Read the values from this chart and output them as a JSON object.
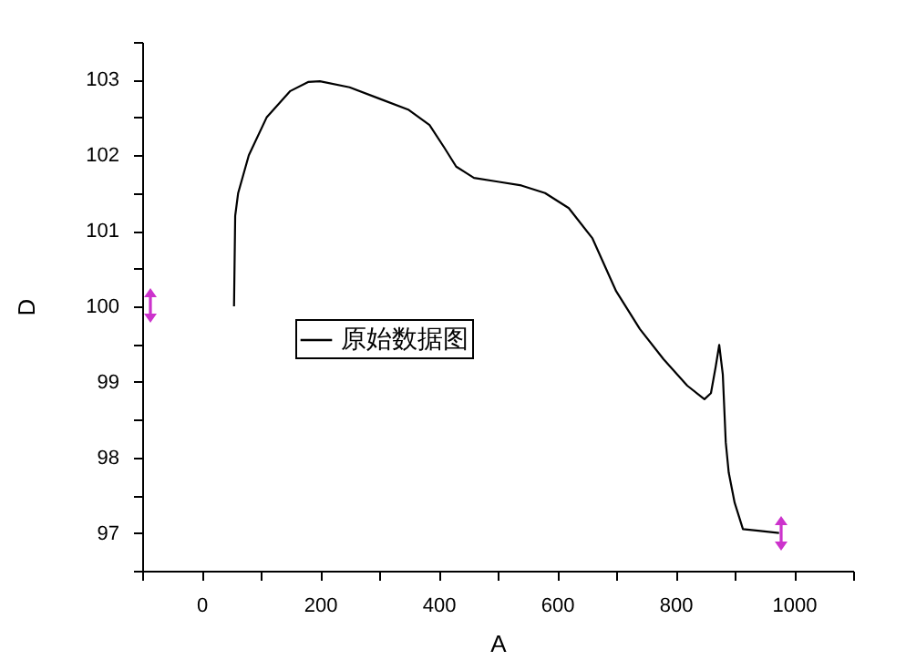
{
  "chart_data": {
    "type": "line",
    "xlabel": "A",
    "ylabel": "D",
    "x": [
      55,
      57,
      62,
      80,
      110,
      150,
      180,
      200,
      250,
      300,
      350,
      385,
      410,
      430,
      460,
      500,
      540,
      580,
      620,
      660,
      700,
      740,
      780,
      820,
      849,
      860,
      868,
      874,
      880,
      885,
      890,
      900,
      914,
      940,
      975
    ],
    "series": [
      {
        "name": "原始数据图",
        "color": "#000000",
        "values": [
          100,
          101.2,
          101.5,
          102.0,
          102.5,
          102.85,
          102.97,
          102.98,
          102.9,
          102.75,
          102.6,
          102.4,
          102.1,
          101.85,
          101.7,
          101.65,
          101.6,
          101.5,
          101.3,
          100.9,
          100.2,
          99.7,
          99.3,
          98.95,
          98.77,
          98.85,
          99.2,
          99.49,
          99.1,
          98.2,
          97.8,
          97.4,
          97.05,
          97.03,
          97.0
        ]
      }
    ],
    "xlim": [
      -100,
      1100
    ],
    "xticks": [
      {
        "value": -100,
        "label": null
      },
      0,
      {
        "value": 100,
        "label": null
      },
      200,
      {
        "value": 300,
        "label": null
      },
      400,
      {
        "value": 500,
        "label": null
      },
      600,
      {
        "value": 700,
        "label": null
      },
      800,
      {
        "value": 900,
        "label": null
      },
      1000,
      {
        "value": 1100,
        "label": null
      }
    ],
    "ylim": [
      96.5,
      103.5
    ],
    "yticks": [
      {
        "value": 96.5,
        "label": null
      },
      97,
      {
        "value": 97.5,
        "label": null
      },
      98,
      {
        "value": 98.5,
        "label": null
      },
      99,
      {
        "value": 99.5,
        "label": null
      },
      100,
      {
        "value": 100.5,
        "label": null
      },
      101,
      {
        "value": 101.5,
        "label": null
      },
      102,
      {
        "value": 102.5,
        "label": null
      },
      103,
      {
        "value": 103.5,
        "label": null
      }
    ],
    "grid": false,
    "legend": "left",
    "marker": "none",
    "line_style": "solid"
  }
}
